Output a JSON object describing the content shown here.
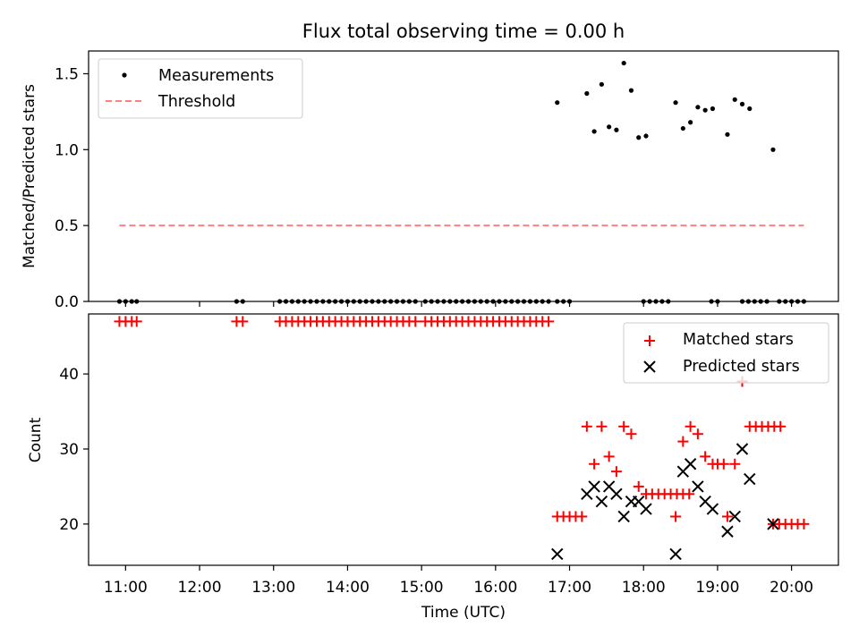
{
  "chart_data": [
    {
      "type": "scatter",
      "title": "Flux total observing time = 0.00 h",
      "xlabel": "",
      "ylabel": "Matched/Predicted stars",
      "ylim": [
        0,
        1.65
      ],
      "xlim": [
        "10:30",
        "20:38"
      ],
      "yticks": [
        "0.0",
        "0.5",
        "1.0",
        "1.5"
      ],
      "legend_position": "top-left",
      "series": [
        {
          "name": "Measurements",
          "color": "#000000",
          "marker": "dot",
          "points": [
            [
              "10:55",
              0
            ],
            [
              "11:00",
              0
            ],
            [
              "11:05",
              0
            ],
            [
              "11:09",
              0
            ],
            [
              "12:30",
              0
            ],
            [
              "12:35",
              0
            ],
            [
              "13:05",
              0
            ],
            [
              "13:10",
              0
            ],
            [
              "13:15",
              0
            ],
            [
              "13:20",
              0
            ],
            [
              "13:25",
              0
            ],
            [
              "13:30",
              0
            ],
            [
              "13:35",
              0
            ],
            [
              "13:40",
              0
            ],
            [
              "13:45",
              0
            ],
            [
              "13:50",
              0
            ],
            [
              "13:55",
              0
            ],
            [
              "14:00",
              0
            ],
            [
              "14:05",
              0
            ],
            [
              "14:10",
              0
            ],
            [
              "14:15",
              0
            ],
            [
              "14:20",
              0
            ],
            [
              "14:25",
              0
            ],
            [
              "14:30",
              0
            ],
            [
              "14:35",
              0
            ],
            [
              "14:40",
              0
            ],
            [
              "14:45",
              0
            ],
            [
              "14:50",
              0
            ],
            [
              "14:55",
              0
            ],
            [
              "15:03",
              0
            ],
            [
              "15:08",
              0
            ],
            [
              "15:13",
              0
            ],
            [
              "15:18",
              0
            ],
            [
              "15:23",
              0
            ],
            [
              "15:28",
              0
            ],
            [
              "15:33",
              0
            ],
            [
              "15:38",
              0
            ],
            [
              "15:43",
              0
            ],
            [
              "15:48",
              0
            ],
            [
              "15:53",
              0
            ],
            [
              "15:58",
              0
            ],
            [
              "16:03",
              0
            ],
            [
              "16:08",
              0
            ],
            [
              "16:13",
              0
            ],
            [
              "16:18",
              0
            ],
            [
              "16:23",
              0
            ],
            [
              "16:28",
              0
            ],
            [
              "16:33",
              0
            ],
            [
              "16:38",
              0
            ],
            [
              "16:43",
              0
            ],
            [
              "16:50",
              0
            ],
            [
              "16:55",
              0
            ],
            [
              "17:00",
              0
            ],
            [
              "16:50",
              1.31
            ],
            [
              "17:14",
              1.37
            ],
            [
              "17:20",
              1.12
            ],
            [
              "17:26",
              1.43
            ],
            [
              "17:32",
              1.15
            ],
            [
              "17:38",
              1.13
            ],
            [
              "17:44",
              1.57
            ],
            [
              "17:50",
              1.39
            ],
            [
              "17:56",
              1.08
            ],
            [
              "18:02",
              1.09
            ],
            [
              "18:00",
              0
            ],
            [
              "18:05",
              0
            ],
            [
              "18:10",
              0
            ],
            [
              "18:15",
              0
            ],
            [
              "18:20",
              0
            ],
            [
              "18:26",
              1.31
            ],
            [
              "18:32",
              1.14
            ],
            [
              "18:38",
              1.18
            ],
            [
              "18:44",
              1.28
            ],
            [
              "18:50",
              1.26
            ],
            [
              "18:56",
              1.27
            ],
            [
              "18:55",
              0
            ],
            [
              "19:00",
              0
            ],
            [
              "19:08",
              1.1
            ],
            [
              "19:14",
              1.33
            ],
            [
              "19:20",
              1.3
            ],
            [
              "19:26",
              1.27
            ],
            [
              "19:20",
              0
            ],
            [
              "19:25",
              0
            ],
            [
              "19:30",
              0
            ],
            [
              "19:35",
              0
            ],
            [
              "19:40",
              0
            ],
            [
              "19:45",
              1.0
            ],
            [
              "19:50",
              0
            ],
            [
              "19:55",
              0
            ],
            [
              "20:00",
              0
            ],
            [
              "20:05",
              0
            ],
            [
              "20:10",
              0
            ]
          ]
        },
        {
          "name": "Threshold",
          "color": "#ff7f7f",
          "line_style": "dashed",
          "points": [
            [
              "10:55",
              0.5
            ],
            [
              "20:10",
              0.5
            ]
          ]
        }
      ]
    },
    {
      "type": "scatter",
      "title": "",
      "xlabel": "Time (UTC)",
      "ylabel": "Count",
      "ylim": [
        14.5,
        48
      ],
      "xlim": [
        "10:30",
        "20:38"
      ],
      "xticks": [
        "11:00",
        "12:00",
        "13:00",
        "14:00",
        "15:00",
        "16:00",
        "17:00",
        "18:00",
        "19:00",
        "20:00"
      ],
      "yticks": [
        "20",
        "30",
        "40"
      ],
      "legend_position": "top-right",
      "series": [
        {
          "name": "Matched stars",
          "color": "#ff0000",
          "marker": "plus",
          "points": [
            [
              "10:55",
              47
            ],
            [
              "11:00",
              47
            ],
            [
              "11:05",
              47
            ],
            [
              "11:09",
              47
            ],
            [
              "12:30",
              47
            ],
            [
              "12:35",
              47
            ],
            [
              "13:05",
              47
            ],
            [
              "13:10",
              47
            ],
            [
              "13:15",
              47
            ],
            [
              "13:20",
              47
            ],
            [
              "13:25",
              47
            ],
            [
              "13:30",
              47
            ],
            [
              "13:35",
              47
            ],
            [
              "13:40",
              47
            ],
            [
              "13:45",
              47
            ],
            [
              "13:50",
              47
            ],
            [
              "13:55",
              47
            ],
            [
              "14:00",
              47
            ],
            [
              "14:05",
              47
            ],
            [
              "14:10",
              47
            ],
            [
              "14:15",
              47
            ],
            [
              "14:20",
              47
            ],
            [
              "14:25",
              47
            ],
            [
              "14:30",
              47
            ],
            [
              "14:35",
              47
            ],
            [
              "14:40",
              47
            ],
            [
              "14:45",
              47
            ],
            [
              "14:50",
              47
            ],
            [
              "14:55",
              47
            ],
            [
              "15:03",
              47
            ],
            [
              "15:08",
              47
            ],
            [
              "15:13",
              47
            ],
            [
              "15:18",
              47
            ],
            [
              "15:23",
              47
            ],
            [
              "15:28",
              47
            ],
            [
              "15:33",
              47
            ],
            [
              "15:38",
              47
            ],
            [
              "15:43",
              47
            ],
            [
              "15:48",
              47
            ],
            [
              "15:53",
              47
            ],
            [
              "15:58",
              47
            ],
            [
              "16:03",
              47
            ],
            [
              "16:08",
              47
            ],
            [
              "16:13",
              47
            ],
            [
              "16:18",
              47
            ],
            [
              "16:23",
              47
            ],
            [
              "16:28",
              47
            ],
            [
              "16:33",
              47
            ],
            [
              "16:38",
              47
            ],
            [
              "16:43",
              47
            ],
            [
              "16:50",
              21
            ],
            [
              "16:55",
              21
            ],
            [
              "17:00",
              21
            ],
            [
              "17:05",
              21
            ],
            [
              "17:10",
              21
            ],
            [
              "17:14",
              33
            ],
            [
              "17:20",
              28
            ],
            [
              "17:26",
              33
            ],
            [
              "17:32",
              29
            ],
            [
              "17:38",
              27
            ],
            [
              "17:44",
              33
            ],
            [
              "17:50",
              32
            ],
            [
              "17:56",
              25
            ],
            [
              "18:02",
              24
            ],
            [
              "18:07",
              24
            ],
            [
              "18:12",
              24
            ],
            [
              "18:17",
              24
            ],
            [
              "18:22",
              24
            ],
            [
              "18:27",
              24
            ],
            [
              "18:32",
              24
            ],
            [
              "18:37",
              24
            ],
            [
              "18:26",
              21
            ],
            [
              "18:32",
              31
            ],
            [
              "18:38",
              33
            ],
            [
              "18:44",
              32
            ],
            [
              "18:50",
              29
            ],
            [
              "18:56",
              28
            ],
            [
              "19:00",
              28
            ],
            [
              "19:05",
              28
            ],
            [
              "19:08",
              21
            ],
            [
              "19:14",
              28
            ],
            [
              "19:20",
              39
            ],
            [
              "19:26",
              33
            ],
            [
              "19:31",
              33
            ],
            [
              "19:36",
              33
            ],
            [
              "19:41",
              33
            ],
            [
              "19:46",
              33
            ],
            [
              "19:51",
              33
            ],
            [
              "19:45",
              20
            ],
            [
              "19:50",
              20
            ],
            [
              "19:55",
              20
            ],
            [
              "20:00",
              20
            ],
            [
              "20:05",
              20
            ],
            [
              "20:10",
              20
            ]
          ]
        },
        {
          "name": "Predicted stars",
          "color": "#000000",
          "marker": "x",
          "points": [
            [
              "16:50",
              16
            ],
            [
              "17:14",
              24
            ],
            [
              "17:20",
              25
            ],
            [
              "17:26",
              23
            ],
            [
              "17:32",
              25
            ],
            [
              "17:38",
              24
            ],
            [
              "17:44",
              21
            ],
            [
              "17:50",
              23
            ],
            [
              "17:56",
              23
            ],
            [
              "18:02",
              22
            ],
            [
              "18:26",
              16
            ],
            [
              "18:32",
              27
            ],
            [
              "18:38",
              28
            ],
            [
              "18:44",
              25
            ],
            [
              "18:50",
              23
            ],
            [
              "18:56",
              22
            ],
            [
              "19:08",
              19
            ],
            [
              "19:14",
              21
            ],
            [
              "19:20",
              30
            ],
            [
              "19:26",
              26
            ],
            [
              "19:45",
              20
            ]
          ]
        }
      ]
    }
  ]
}
